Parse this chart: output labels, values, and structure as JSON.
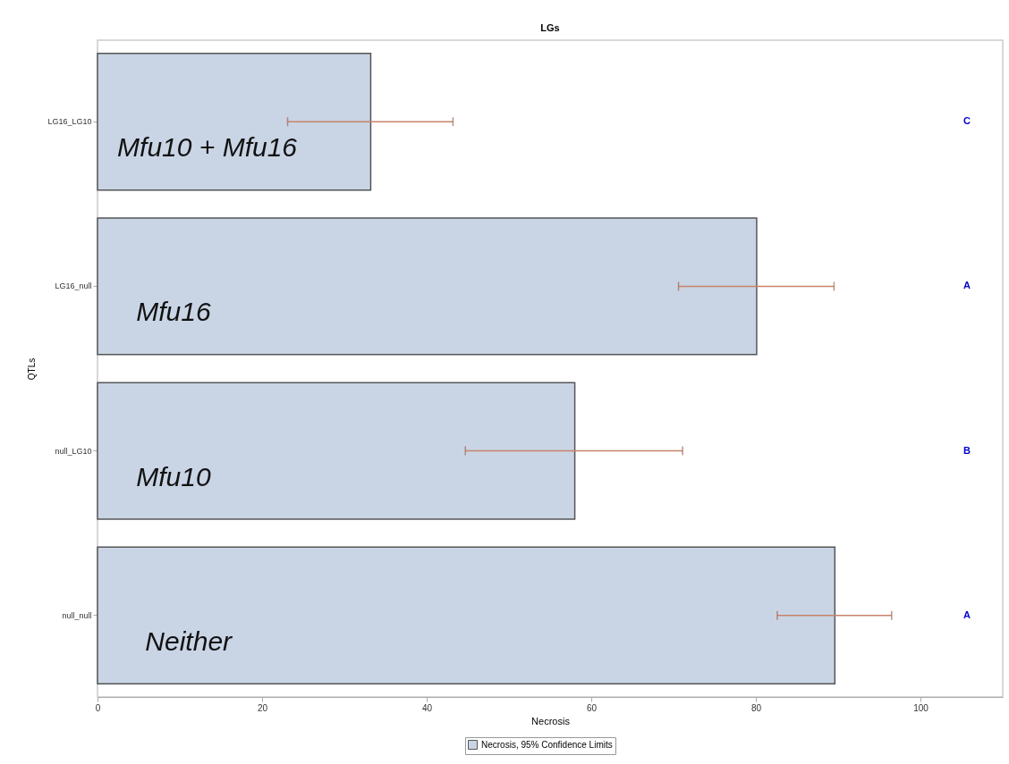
{
  "chart_data": {
    "type": "bar",
    "orientation": "horizontal",
    "title": "LGs",
    "xlabel": "Necrosis",
    "ylabel": "QTLs",
    "categories": [
      "LG16_LG10",
      "LG16_null",
      "null_LG10",
      "null_null"
    ],
    "series": [
      {
        "name": "Necrosis, 95% Confidence Limits",
        "color": "#c9d5e5",
        "values": [
          33.2,
          80.1,
          58.0,
          89.6
        ],
        "errors": [
          [
            23.1,
            43.2
          ],
          [
            70.6,
            89.5
          ],
          [
            44.7,
            71.1
          ],
          [
            82.6,
            96.5
          ]
        ]
      }
    ],
    "xlim": [
      0,
      110
    ],
    "xticks": [
      0,
      20,
      40,
      60,
      80,
      100
    ],
    "grid": false,
    "legend": "bottom",
    "annotations": [
      "C",
      "A",
      "B",
      "A",
      {
        "text": "Mfu10 + Mfu16",
        "x": 2.4,
        "y": "LG16_LG10"
      },
      {
        "text": "Mfu16",
        "x": 4.7,
        "y": "LG16_null"
      },
      {
        "text": "Mfu10",
        "x": 4.7,
        "y": "null_LG10"
      },
      {
        "text": "Neither",
        "x": 5.8,
        "y": "null_null"
      }
    ]
  }
}
